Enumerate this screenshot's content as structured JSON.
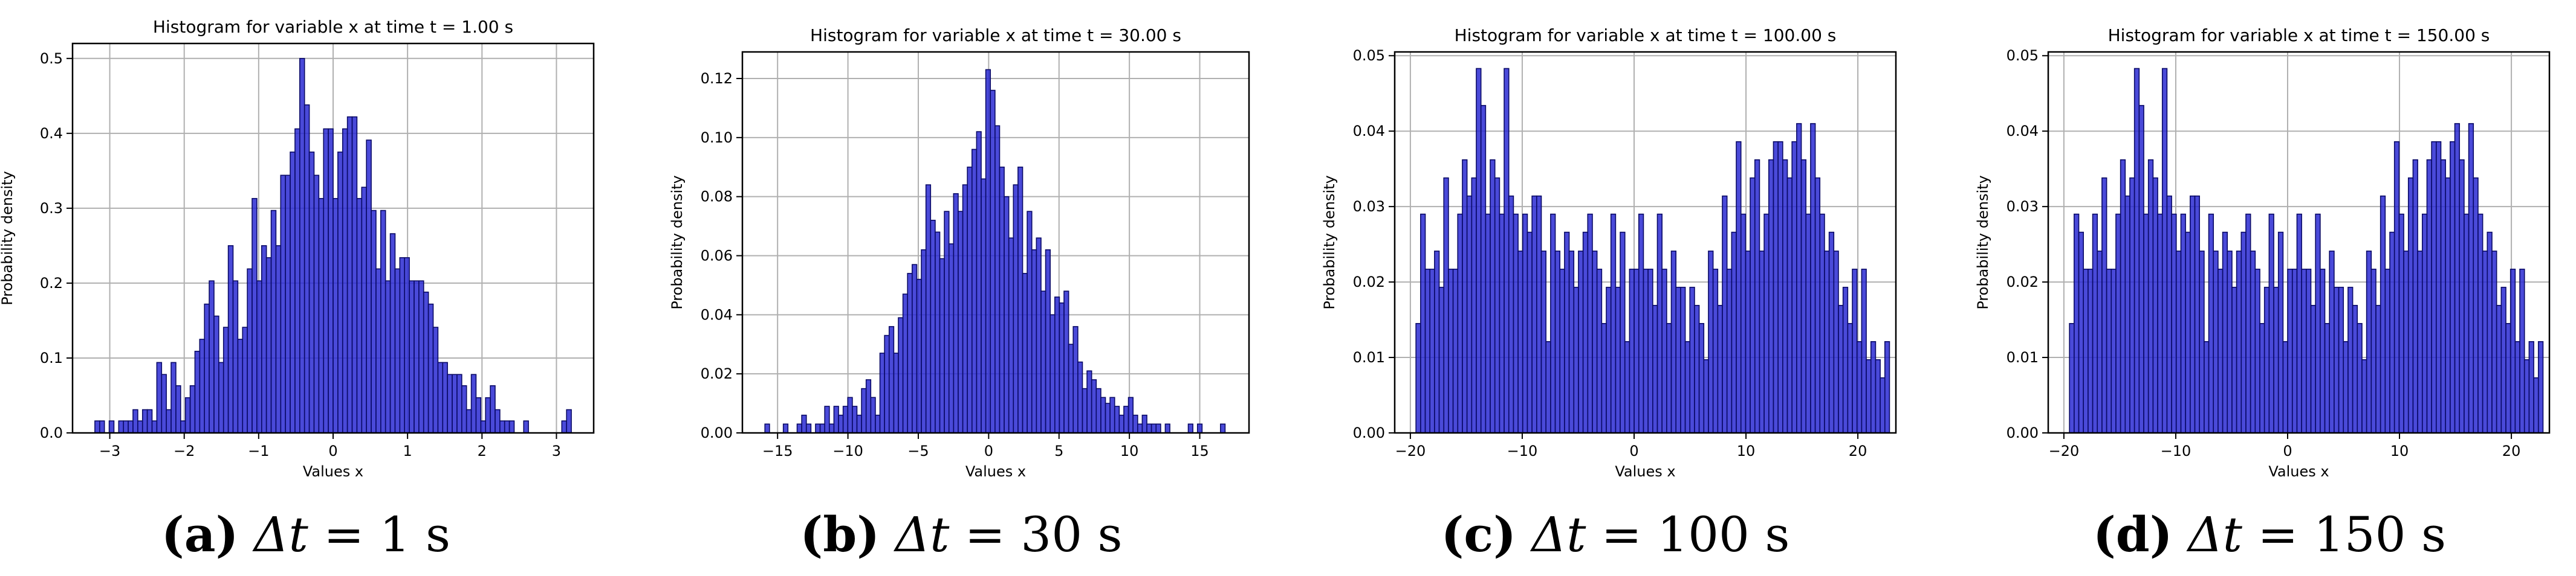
{
  "figure": {
    "colors": {
      "bar_fill": "#2a2ad2",
      "bar_edge": "#0a0a66",
      "grid": "#b0b0b0",
      "axis": "#000000",
      "background": "#ffffff"
    },
    "captions": [
      {
        "label": "(a)",
        "symbol": "Δt",
        "eq": " = 1 s"
      },
      {
        "label": "(b)",
        "symbol": "Δt",
        "eq": " = 30 s"
      },
      {
        "label": "(c)",
        "symbol": "Δt",
        "eq": " = 100 s"
      },
      {
        "label": "(d)",
        "symbol": "Δt",
        "eq": " = 150 s"
      }
    ]
  },
  "chart_data": [
    {
      "type": "bar",
      "title": "Histogram for variable x at time t = 1.00 s",
      "xlabel": "Values x",
      "ylabel": "Probability density",
      "xlim": [
        -3.5,
        3.5
      ],
      "ylim": [
        0,
        0.52
      ],
      "xticks": [
        -3,
        -2,
        -1,
        0,
        1,
        2,
        3
      ],
      "yticks": [
        0.0,
        0.1,
        0.2,
        0.3,
        0.4,
        0.5
      ],
      "ytick_labels": [
        "0.0",
        "0.1",
        "0.2",
        "0.3",
        "0.4",
        "0.5"
      ],
      "grid": true,
      "bin_start": -3.2,
      "bin_width": 0.064,
      "values": [
        0.016,
        0.016,
        0,
        0.016,
        0,
        0.016,
        0.016,
        0.016,
        0.031,
        0.016,
        0.031,
        0.031,
        0.016,
        0.094,
        0.078,
        0.031,
        0.094,
        0.063,
        0.016,
        0.047,
        0.063,
        0.109,
        0.125,
        0.172,
        0.203,
        0.156,
        0.094,
        0.141,
        0.25,
        0.203,
        0.125,
        0.141,
        0.219,
        0.313,
        0.203,
        0.25,
        0.234,
        0.297,
        0.25,
        0.344,
        0.344,
        0.375,
        0.406,
        0.5,
        0.438,
        0.375,
        0.344,
        0.313,
        0.406,
        0.406,
        0.313,
        0.375,
        0.406,
        0.422,
        0.422,
        0.313,
        0.328,
        0.391,
        0.297,
        0.219,
        0.297,
        0.203,
        0.266,
        0.219,
        0.234,
        0.234,
        0.203,
        0.203,
        0.203,
        0.188,
        0.172,
        0.141,
        0.094,
        0.094,
        0.078,
        0.078,
        0.078,
        0.063,
        0.031,
        0.078,
        0.047,
        0.016,
        0.047,
        0.063,
        0.031,
        0.016,
        0.016,
        0.016,
        0,
        0,
        0.016,
        0,
        0,
        0,
        0,
        0,
        0,
        0,
        0.016,
        0.031
      ]
    },
    {
      "type": "bar",
      "title": "Histogram for variable x at time t = 30.00 s",
      "xlabel": "Values x",
      "ylabel": "Probability density",
      "xlim": [
        -17.5,
        18.5
      ],
      "ylim": [
        0,
        0.129
      ],
      "xticks": [
        -15,
        -10,
        -5,
        0,
        5,
        10,
        15
      ],
      "yticks": [
        0.0,
        0.02,
        0.04,
        0.06,
        0.08,
        0.1,
        0.12
      ],
      "ytick_labels": [
        "0.00",
        "0.02",
        "0.04",
        "0.06",
        "0.08",
        "0.10",
        "0.12"
      ],
      "grid": true,
      "bin_start": -15.9,
      "bin_width": 0.327,
      "values": [
        0.003,
        0,
        0,
        0,
        0.003,
        0,
        0,
        0.003,
        0.006,
        0.003,
        0,
        0.003,
        0.003,
        0.009,
        0.003,
        0.009,
        0.006,
        0.009,
        0.012,
        0.009,
        0.006,
        0.015,
        0.018,
        0.012,
        0.006,
        0.027,
        0.033,
        0.036,
        0.027,
        0.039,
        0.047,
        0.054,
        0.057,
        0.052,
        0.062,
        0.084,
        0.072,
        0.068,
        0.059,
        0.075,
        0.064,
        0.081,
        0.075,
        0.084,
        0.09,
        0.096,
        0.102,
        0.086,
        0.123,
        0.116,
        0.104,
        0.09,
        0.08,
        0.066,
        0.084,
        0.09,
        0.054,
        0.075,
        0.062,
        0.066,
        0.048,
        0.062,
        0.04,
        0.046,
        0.044,
        0.048,
        0.03,
        0.036,
        0.024,
        0.015,
        0.021,
        0.018,
        0.015,
        0.012,
        0.01,
        0.012,
        0.009,
        0.006,
        0.009,
        0.012,
        0.006,
        0.003,
        0.006,
        0.003,
        0.003,
        0.003,
        0,
        0.003,
        0,
        0,
        0,
        0,
        0.003,
        0,
        0.003,
        0,
        0,
        0,
        0,
        0.003
      ]
    },
    {
      "type": "bar",
      "title": "Histogram for variable x at time t = 100.00 s",
      "xlabel": "Values x",
      "ylabel": "Probability density",
      "xlim": [
        -21.4,
        23.4
      ],
      "ylim": [
        0,
        0.0505
      ],
      "xticks": [
        -20,
        -10,
        0,
        10,
        20
      ],
      "yticks": [
        0.0,
        0.01,
        0.02,
        0.03,
        0.04,
        0.05
      ],
      "ytick_labels": [
        "0.00",
        "0.01",
        "0.02",
        "0.03",
        "0.04",
        "0.05"
      ],
      "grid": true,
      "bin_start": -19.5,
      "bin_width": 0.415,
      "values": [
        0.0145,
        0.029,
        0.0217,
        0.0217,
        0.0241,
        0.0193,
        0.0338,
        0.0217,
        0.0217,
        0.029,
        0.0362,
        0.0314,
        0.0338,
        0.0483,
        0.0434,
        0.029,
        0.0362,
        0.0338,
        0.029,
        0.0483,
        0.0314,
        0.029,
        0.0241,
        0.029,
        0.0266,
        0.0314,
        0.0314,
        0.0241,
        0.0121,
        0.029,
        0.0241,
        0.0217,
        0.0266,
        0.0241,
        0.0193,
        0.0241,
        0.0266,
        0.029,
        0.0241,
        0.0217,
        0.0145,
        0.0193,
        0.029,
        0.0193,
        0.0266,
        0.0121,
        0.0217,
        0.0217,
        0.029,
        0.0217,
        0.0217,
        0.0169,
        0.029,
        0.0217,
        0.0145,
        0.0241,
        0.0193,
        0.0193,
        0.0121,
        0.0193,
        0.0169,
        0.0145,
        0.0097,
        0.0241,
        0.0217,
        0.0169,
        0.0314,
        0.0217,
        0.0266,
        0.0386,
        0.029,
        0.0241,
        0.0338,
        0.0362,
        0.0241,
        0.029,
        0.0362,
        0.0386,
        0.0386,
        0.0362,
        0.0338,
        0.0386,
        0.041,
        0.0362,
        0.029,
        0.041,
        0.0338,
        0.029,
        0.0241,
        0.0266,
        0.0241,
        0.0169,
        0.0193,
        0.0145,
        0.0217,
        0.0121,
        0.0217,
        0.0097,
        0.0121,
        0.0097,
        0.0073,
        0.0121
      ]
    },
    {
      "type": "bar",
      "title": "Histogram for variable x at time t = 150.00 s",
      "xlabel": "Values x",
      "ylabel": "Probability density",
      "xlim": [
        -21.4,
        23.4
      ],
      "ylim": [
        0,
        0.0505
      ],
      "xticks": [
        -20,
        -10,
        0,
        10,
        20
      ],
      "yticks": [
        0.0,
        0.01,
        0.02,
        0.03,
        0.04,
        0.05
      ],
      "ytick_labels": [
        "0.00",
        "0.01",
        "0.02",
        "0.03",
        "0.04",
        "0.05"
      ],
      "grid": true,
      "bin_start": -19.5,
      "bin_width": 0.415,
      "values": [
        0.0145,
        0.029,
        0.0266,
        0.0217,
        0.0217,
        0.029,
        0.0241,
        0.0338,
        0.0217,
        0.0217,
        0.029,
        0.0362,
        0.0314,
        0.0338,
        0.0483,
        0.0434,
        0.029,
        0.0362,
        0.0338,
        0.029,
        0.0483,
        0.0314,
        0.029,
        0.0241,
        0.029,
        0.0266,
        0.0314,
        0.0314,
        0.0241,
        0.0121,
        0.029,
        0.0241,
        0.0217,
        0.0266,
        0.0241,
        0.0193,
        0.0241,
        0.0266,
        0.029,
        0.0241,
        0.0217,
        0.0145,
        0.0193,
        0.029,
        0.0193,
        0.0266,
        0.0121,
        0.0217,
        0.0217,
        0.029,
        0.0217,
        0.0217,
        0.0169,
        0.029,
        0.0217,
        0.0145,
        0.0241,
        0.0193,
        0.0193,
        0.0121,
        0.0193,
        0.0169,
        0.0145,
        0.0097,
        0.0241,
        0.0217,
        0.0169,
        0.0314,
        0.0217,
        0.0266,
        0.0386,
        0.029,
        0.0241,
        0.0338,
        0.0362,
        0.0241,
        0.029,
        0.0362,
        0.0386,
        0.0386,
        0.0362,
        0.0338,
        0.0386,
        0.041,
        0.0362,
        0.029,
        0.041,
        0.0338,
        0.029,
        0.0241,
        0.0266,
        0.0241,
        0.0169,
        0.0193,
        0.0145,
        0.0217,
        0.0121,
        0.0217,
        0.0097,
        0.0121,
        0.0073,
        0.0121
      ]
    }
  ]
}
